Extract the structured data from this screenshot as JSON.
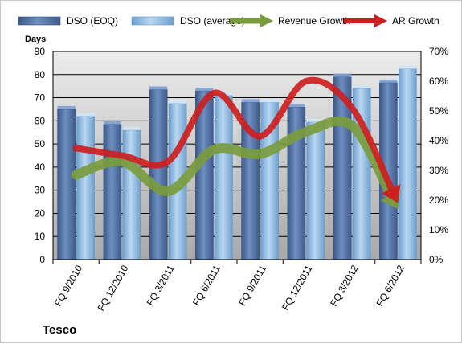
{
  "chart_data": {
    "type": "bar",
    "title": "",
    "company": "Tesco",
    "ylabel": "Days",
    "y2label": "",
    "ylim": [
      0,
      90
    ],
    "y2lim": [
      0,
      70
    ],
    "yticks": [
      "0",
      "10",
      "20",
      "30",
      "40",
      "50",
      "60",
      "70",
      "80",
      "90"
    ],
    "y2ticks": [
      "0%",
      "10%",
      "20%",
      "30%",
      "40%",
      "50%",
      "60%",
      "70%"
    ],
    "categories": [
      "FQ 9/2010",
      "FQ 12/2010",
      "FQ 3/2011",
      "FQ 6/2011",
      "FQ 9/2011",
      "FQ 12/2011",
      "FQ 3/2012",
      "FQ 6/2012"
    ],
    "series": [
      {
        "name": "DSO (EOQ)",
        "type": "bar",
        "axis": "left",
        "color": "#4f6fa3",
        "values": [
          65,
          58.5,
          73.5,
          73,
          68,
          66,
          79,
          76.5
        ]
      },
      {
        "name": "DSO (average)",
        "type": "bar",
        "axis": "left",
        "color": "#7fb1dd",
        "values": [
          62,
          56,
          67.5,
          71,
          68,
          59.5,
          74,
          82.5
        ]
      },
      {
        "name": "Revenue Growth",
        "type": "line",
        "axis": "right",
        "color": "#7a9c3e",
        "values": [
          28.5,
          33,
          23,
          37,
          35.5,
          43,
          45,
          17
        ]
      },
      {
        "name": "AR Growth",
        "type": "line",
        "axis": "right",
        "color": "#cc1f1f",
        "values": [
          37.5,
          35,
          33,
          56,
          41.5,
          60,
          51,
          19
        ]
      }
    ],
    "grid": true,
    "legend": "top"
  }
}
